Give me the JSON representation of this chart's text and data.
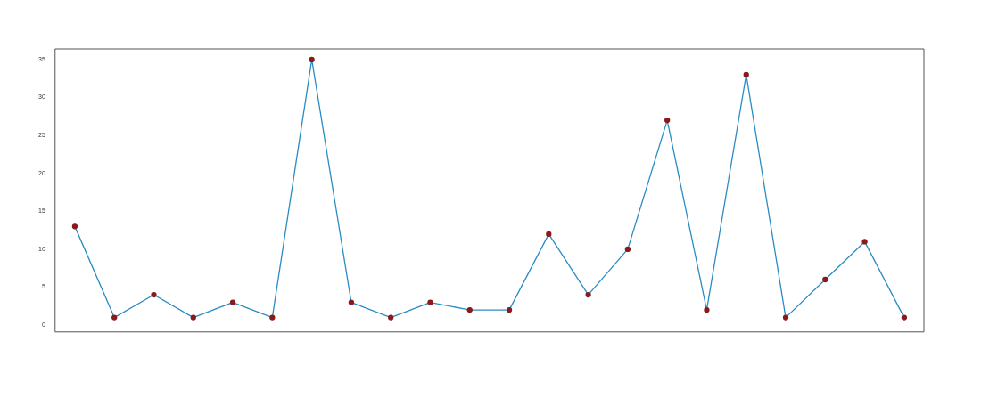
{
  "chart_data": {
    "type": "line",
    "categories": [
      null,
      null,
      null,
      null,
      null,
      null,
      null,
      null,
      null,
      null,
      null,
      null,
      null,
      null,
      null,
      null,
      null,
      null,
      null,
      null,
      null,
      null
    ],
    "series": [
      {
        "color": "#2b8cc4",
        "values": [
          13,
          1,
          4,
          1,
          3,
          1,
          35,
          3,
          1,
          3,
          2,
          2,
          12,
          4,
          10,
          27,
          2,
          33,
          1,
          6,
          11,
          1
        ]
      }
    ],
    "marker": "circle",
    "ylim": [
      -0.9,
      36.4
    ],
    "yticks": [
      0,
      5,
      10,
      15,
      20,
      25,
      30,
      35
    ],
    "grid": false,
    "legend": false
  }
}
